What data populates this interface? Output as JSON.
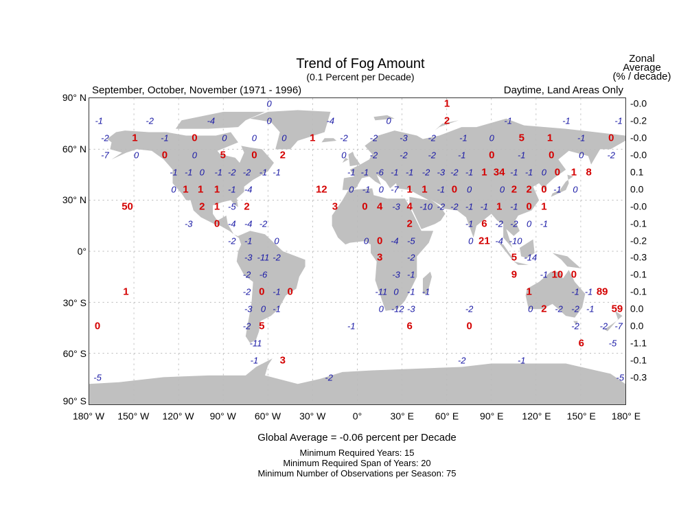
{
  "header": {
    "title": "Trend of Fog Amount",
    "subtitle": "(0.1 Percent per Decade)",
    "season": "September, October, November (1971 - 1996)",
    "scope": "Daytime, Land Areas Only",
    "zonal_title": [
      "Zonal",
      "Average",
      "(% / decade)"
    ]
  },
  "axes": {
    "lat_labels": [
      {
        "lat": 90,
        "text": "90° N"
      },
      {
        "lat": 60,
        "text": "60° N"
      },
      {
        "lat": 30,
        "text": "30° N"
      },
      {
        "lat": 0,
        "text": "0°"
      },
      {
        "lat": -30,
        "text": "30° S"
      },
      {
        "lat": -60,
        "text": "60° S"
      },
      {
        "lat": -90,
        "text": "90° S"
      }
    ],
    "lon_labels": [
      {
        "lon": -180,
        "text": "180° W"
      },
      {
        "lon": -150,
        "text": "150° W"
      },
      {
        "lon": -120,
        "text": "120° W"
      },
      {
        "lon": -90,
        "text": "90° W"
      },
      {
        "lon": -60,
        "text": "60° W"
      },
      {
        "lon": -30,
        "text": "30° W"
      },
      {
        "lon": 0,
        "text": "0°"
      },
      {
        "lon": 30,
        "text": "30° E"
      },
      {
        "lon": 60,
        "text": "60° E"
      },
      {
        "lon": 90,
        "text": "90° E"
      },
      {
        "lon": 120,
        "text": "120° E"
      },
      {
        "lon": 150,
        "text": "150° E"
      },
      {
        "lon": 180,
        "text": "180° E"
      }
    ],
    "gridline_interval_deg": 30
  },
  "colors": {
    "significant": "#d40000",
    "other": "#1a1aa6",
    "land": "#c0c0c0"
  },
  "zonal_average": [
    {
      "lat": 85,
      "value": "-0.0"
    },
    {
      "lat": 75,
      "value": "-0.2"
    },
    {
      "lat": 65,
      "value": "-0.0"
    },
    {
      "lat": 55,
      "value": "-0.0"
    },
    {
      "lat": 45,
      "value": "0.1"
    },
    {
      "lat": 35,
      "value": "0.0"
    },
    {
      "lat": 25,
      "value": "-0.0"
    },
    {
      "lat": 15,
      "value": "-0.1"
    },
    {
      "lat": 5,
      "value": "-0.2"
    },
    {
      "lat": -5,
      "value": "-0.3"
    },
    {
      "lat": -15,
      "value": "-0.1"
    },
    {
      "lat": -25,
      "value": "-0.1"
    },
    {
      "lat": -35,
      "value": "0.0"
    },
    {
      "lat": -45,
      "value": "0.0"
    },
    {
      "lat": -55,
      "value": "-1.1"
    },
    {
      "lat": -65,
      "value": "-0.1"
    },
    {
      "lat": -75,
      "value": "-0.3"
    }
  ],
  "grid_values": [
    {
      "lat": 85,
      "cells": [
        [
          -59,
          "0",
          "blue"
        ],
        [
          60,
          "1",
          "red"
        ]
      ]
    },
    {
      "lat": 75,
      "cells": [
        [
          -173,
          "-1",
          "blue"
        ],
        [
          -139,
          "-2",
          "blue"
        ],
        [
          -98,
          "-4",
          "blue"
        ],
        [
          -59,
          "0",
          "blue"
        ],
        [
          -18,
          "-4",
          "blue"
        ],
        [
          21,
          "0",
          "blue"
        ],
        [
          60,
          "2",
          "red"
        ],
        [
          101,
          "-1",
          "blue"
        ],
        [
          140,
          "-1",
          "blue"
        ],
        [
          175,
          "-1",
          "blue"
        ]
      ]
    },
    {
      "lat": 65,
      "cells": [
        [
          -169,
          "-2",
          "blue"
        ],
        [
          -149,
          "1",
          "red"
        ],
        [
          -129,
          "-1",
          "blue"
        ],
        [
          -109,
          "0",
          "red"
        ],
        [
          -89,
          "0",
          "blue"
        ],
        [
          -69,
          "0",
          "blue"
        ],
        [
          -49,
          "0",
          "blue"
        ],
        [
          -30,
          "1",
          "red"
        ],
        [
          -9,
          "-2",
          "blue"
        ],
        [
          11,
          "-2",
          "blue"
        ],
        [
          31,
          "-3",
          "blue"
        ],
        [
          50,
          "-2",
          "blue"
        ],
        [
          71,
          "-1",
          "blue"
        ],
        [
          90,
          "0",
          "blue"
        ],
        [
          110,
          "5",
          "red"
        ],
        [
          129,
          "1",
          "red"
        ],
        [
          150,
          "-1",
          "blue"
        ],
        [
          170,
          "0",
          "red"
        ]
      ]
    },
    {
      "lat": 55,
      "cells": [
        [
          -169,
          "-7",
          "blue"
        ],
        [
          -148,
          "0",
          "blue"
        ],
        [
          -129,
          "0",
          "red"
        ],
        [
          -109,
          "0",
          "blue"
        ],
        [
          -90,
          "5",
          "red"
        ],
        [
          -69,
          "0",
          "red"
        ],
        [
          -50,
          "2",
          "red"
        ],
        [
          -9,
          "0",
          "blue"
        ],
        [
          11,
          "-2",
          "blue"
        ],
        [
          31,
          "-2",
          "blue"
        ],
        [
          50,
          "-2",
          "blue"
        ],
        [
          70,
          "-1",
          "blue"
        ],
        [
          90,
          "0",
          "red"
        ],
        [
          110,
          "-1",
          "blue"
        ],
        [
          130,
          "0",
          "red"
        ],
        [
          150,
          "0",
          "blue"
        ],
        [
          170,
          "-2",
          "blue"
        ]
      ]
    },
    {
      "lat": 45,
      "cells": [
        [
          -123,
          "-1",
          "blue"
        ],
        [
          -113,
          "-1",
          "blue"
        ],
        [
          -104,
          "0",
          "blue"
        ],
        [
          -93,
          "-1",
          "blue"
        ],
        [
          -84,
          "-2",
          "blue"
        ],
        [
          -74,
          "-2",
          "blue"
        ],
        [
          -63,
          "-1",
          "blue"
        ],
        [
          -54,
          "-1",
          "blue"
        ],
        [
          -4,
          "-1",
          "blue"
        ],
        [
          5,
          "-1",
          "blue"
        ],
        [
          15,
          "-6",
          "blue"
        ],
        [
          25,
          "-1",
          "blue"
        ],
        [
          35,
          "-1",
          "blue"
        ],
        [
          46,
          "-2",
          "blue"
        ],
        [
          56,
          "-3",
          "blue"
        ],
        [
          65,
          "-2",
          "blue"
        ],
        [
          75,
          "-1",
          "blue"
        ],
        [
          85,
          "1",
          "red"
        ],
        [
          95,
          "34",
          "red"
        ],
        [
          105,
          "-1",
          "blue"
        ],
        [
          115,
          "-1",
          "blue"
        ],
        [
          125,
          "0",
          "blue"
        ],
        [
          134,
          "0",
          "red"
        ],
        [
          145,
          "1",
          "red"
        ],
        [
          155,
          "8",
          "red"
        ]
      ]
    },
    {
      "lat": 35,
      "cells": [
        [
          -123,
          "0",
          "blue"
        ],
        [
          -115,
          "1",
          "red"
        ],
        [
          -105,
          "1",
          "red"
        ],
        [
          -94,
          "1",
          "red"
        ],
        [
          -84,
          "-1",
          "blue"
        ],
        [
          -73,
          "-4",
          "blue"
        ],
        [
          -24,
          "12",
          "red"
        ],
        [
          -4,
          "0",
          "blue"
        ],
        [
          6,
          "-1",
          "blue"
        ],
        [
          16,
          "0",
          "blue"
        ],
        [
          25,
          "-7",
          "blue"
        ],
        [
          35,
          "1",
          "red"
        ],
        [
          45,
          "1",
          "red"
        ],
        [
          56,
          "-1",
          "blue"
        ],
        [
          65,
          "0",
          "red"
        ],
        [
          75,
          "0",
          "blue"
        ],
        [
          97,
          "0",
          "blue"
        ],
        [
          105,
          "2",
          "red"
        ],
        [
          115,
          "2",
          "red"
        ],
        [
          125,
          "0",
          "red"
        ],
        [
          134,
          "-1",
          "blue"
        ],
        [
          146,
          "0",
          "blue"
        ]
      ]
    },
    {
      "lat": 25,
      "cells": [
        [
          -154,
          "50",
          "red"
        ],
        [
          -104,
          "2",
          "red"
        ],
        [
          -94,
          "1",
          "red"
        ],
        [
          -84,
          "-5",
          "blue"
        ],
        [
          -74,
          "2",
          "red"
        ],
        [
          -15,
          "3",
          "red"
        ],
        [
          5,
          "0",
          "red"
        ],
        [
          15,
          "4",
          "red"
        ],
        [
          26,
          "-3",
          "blue"
        ],
        [
          35,
          "4",
          "red"
        ],
        [
          46,
          "-10",
          "blue"
        ],
        [
          56,
          "-2",
          "blue"
        ],
        [
          65,
          "-2",
          "blue"
        ],
        [
          75,
          "-1",
          "blue"
        ],
        [
          85,
          "-1",
          "blue"
        ],
        [
          95,
          "1",
          "red"
        ],
        [
          105,
          "-1",
          "blue"
        ],
        [
          115,
          "0",
          "red"
        ],
        [
          125,
          "1",
          "red"
        ]
      ]
    },
    {
      "lat": 15,
      "cells": [
        [
          -113,
          "-3",
          "blue"
        ],
        [
          -94,
          "0",
          "red"
        ],
        [
          -84,
          "-4",
          "blue"
        ],
        [
          -73,
          "-4",
          "blue"
        ],
        [
          -63,
          "-2",
          "blue"
        ],
        [
          35,
          "2",
          "red"
        ],
        [
          75,
          "-1",
          "blue"
        ],
        [
          85,
          "6",
          "red"
        ],
        [
          95,
          "-2",
          "blue"
        ],
        [
          105,
          "-2",
          "blue"
        ],
        [
          115,
          "0",
          "blue"
        ],
        [
          125,
          "-1",
          "blue"
        ]
      ]
    },
    {
      "lat": 5,
      "cells": [
        [
          -84,
          "-2",
          "blue"
        ],
        [
          -73,
          "-1",
          "blue"
        ],
        [
          -54,
          "0",
          "blue"
        ],
        [
          6,
          "0",
          "blue"
        ],
        [
          15,
          "0",
          "red"
        ],
        [
          25,
          "-4",
          "blue"
        ],
        [
          36,
          "-5",
          "blue"
        ],
        [
          76,
          "0",
          "blue"
        ],
        [
          85,
          "21",
          "red"
        ],
        [
          95,
          "-4",
          "blue"
        ],
        [
          106,
          "-10",
          "blue"
        ]
      ]
    },
    {
      "lat": -5,
      "cells": [
        [
          -73,
          "-3",
          "blue"
        ],
        [
          -63,
          "-11",
          "blue"
        ],
        [
          -54,
          "-2",
          "blue"
        ],
        [
          15,
          "3",
          "red"
        ],
        [
          36,
          "-2",
          "blue"
        ],
        [
          105,
          "5",
          "red"
        ],
        [
          116,
          "-14",
          "blue"
        ]
      ]
    },
    {
      "lat": -15,
      "cells": [
        [
          -74,
          "-2",
          "blue"
        ],
        [
          -63,
          "-6",
          "blue"
        ],
        [
          26,
          "-3",
          "blue"
        ],
        [
          36,
          "-1",
          "blue"
        ],
        [
          105,
          "9",
          "red"
        ],
        [
          125,
          "-1",
          "blue"
        ],
        [
          134,
          "10",
          "red"
        ],
        [
          145,
          "0",
          "red"
        ]
      ]
    },
    {
      "lat": -25,
      "cells": [
        [
          -155,
          "1",
          "red"
        ],
        [
          -74,
          "-2",
          "blue"
        ],
        [
          -64,
          "0",
          "red"
        ],
        [
          -54,
          "-1",
          "blue"
        ],
        [
          -45,
          "0",
          "red"
        ],
        [
          16,
          "-11",
          "blue"
        ],
        [
          26,
          "0",
          "blue"
        ],
        [
          36,
          "-1",
          "blue"
        ],
        [
          46,
          "-1",
          "blue"
        ],
        [
          115,
          "1",
          "red"
        ],
        [
          146,
          "-1",
          "blue"
        ],
        [
          155,
          "-1",
          "blue"
        ],
        [
          164,
          "89",
          "red"
        ]
      ]
    },
    {
      "lat": -35,
      "cells": [
        [
          -73,
          "-3",
          "blue"
        ],
        [
          -63,
          "0",
          "blue"
        ],
        [
          -54,
          "-1",
          "blue"
        ],
        [
          16,
          "0",
          "blue"
        ],
        [
          27,
          "-12",
          "blue"
        ],
        [
          36,
          "-3",
          "blue"
        ],
        [
          75,
          "-2",
          "blue"
        ],
        [
          116,
          "0",
          "blue"
        ],
        [
          125,
          "2",
          "red"
        ],
        [
          135,
          "-2",
          "blue"
        ],
        [
          146,
          "-2",
          "blue"
        ],
        [
          156,
          "-1",
          "blue"
        ],
        [
          174,
          "59",
          "red"
        ]
      ]
    },
    {
      "lat": -45,
      "cells": [
        [
          -174,
          "0",
          "red"
        ],
        [
          -74,
          "-2",
          "blue"
        ],
        [
          -64,
          "5",
          "red"
        ],
        [
          -4,
          "-1",
          "blue"
        ],
        [
          35,
          "6",
          "red"
        ],
        [
          75,
          "0",
          "red"
        ],
        [
          146,
          "-2",
          "blue"
        ],
        [
          165,
          "-2",
          "blue"
        ],
        [
          175,
          "-7",
          "blue"
        ]
      ]
    },
    {
      "lat": -55,
      "cells": [
        [
          -68,
          "-11",
          "blue"
        ],
        [
          150,
          "6",
          "red"
        ],
        [
          171,
          "-5",
          "blue"
        ]
      ]
    },
    {
      "lat": -65,
      "cells": [
        [
          -69,
          "-1",
          "blue"
        ],
        [
          -50,
          "3",
          "red"
        ],
        [
          70,
          "-2",
          "blue"
        ],
        [
          110,
          "-1",
          "blue"
        ]
      ]
    },
    {
      "lat": -75,
      "cells": [
        [
          -174,
          "-5",
          "blue"
        ],
        [
          -19,
          "-2",
          "blue"
        ],
        [
          176,
          "-5",
          "blue"
        ]
      ]
    }
  ],
  "footer": {
    "global_average": "Global Average = -0.06 percent per Decade",
    "min_years": "Minimum Required Years: 15",
    "min_span": "Minimum Required Span of Years: 20",
    "min_obs": "Minimum Number of Observations per Season: 75"
  }
}
